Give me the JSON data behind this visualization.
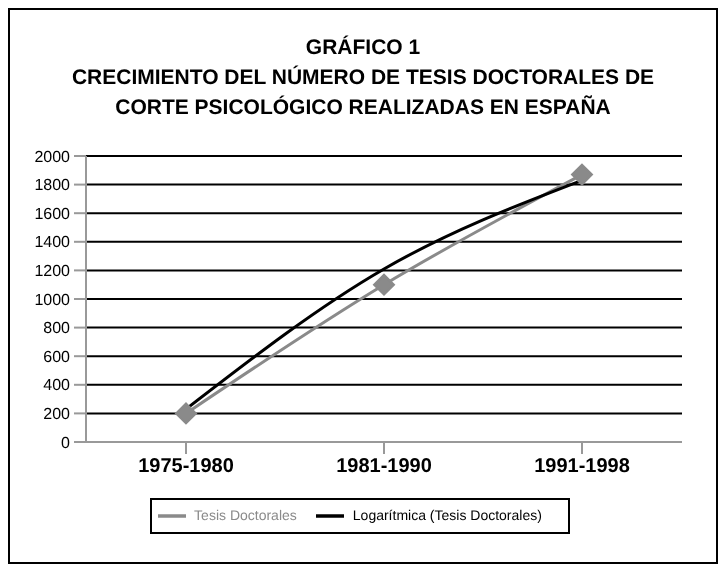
{
  "chart_data": {
    "type": "line",
    "title": "GRÁFICO 1\nCRECIMIENTO DEL NÚMERO DE TESIS DOCTORALES DE\nCORTE PSICOLÓGICO REALIZADAS EN ESPAÑA",
    "categories": [
      "1975-1980",
      "1981-1990",
      "1991-1998"
    ],
    "series": [
      {
        "name": "Tesis Doctorales",
        "color": "#8a8a8a",
        "values": [
          200,
          1100,
          1870
        ],
        "marker": "diamond"
      },
      {
        "name": "Logarítmica (Tesis Doctorales)",
        "color": "#000000",
        "values": [
          230,
          1210,
          1830
        ],
        "marker": "none"
      }
    ],
    "ylim": [
      0,
      2000
    ],
    "yticks": [
      0,
      200,
      400,
      600,
      800,
      1000,
      1200,
      1400,
      1600,
      1800,
      2000
    ],
    "grid": "y",
    "legend": "bottom"
  }
}
